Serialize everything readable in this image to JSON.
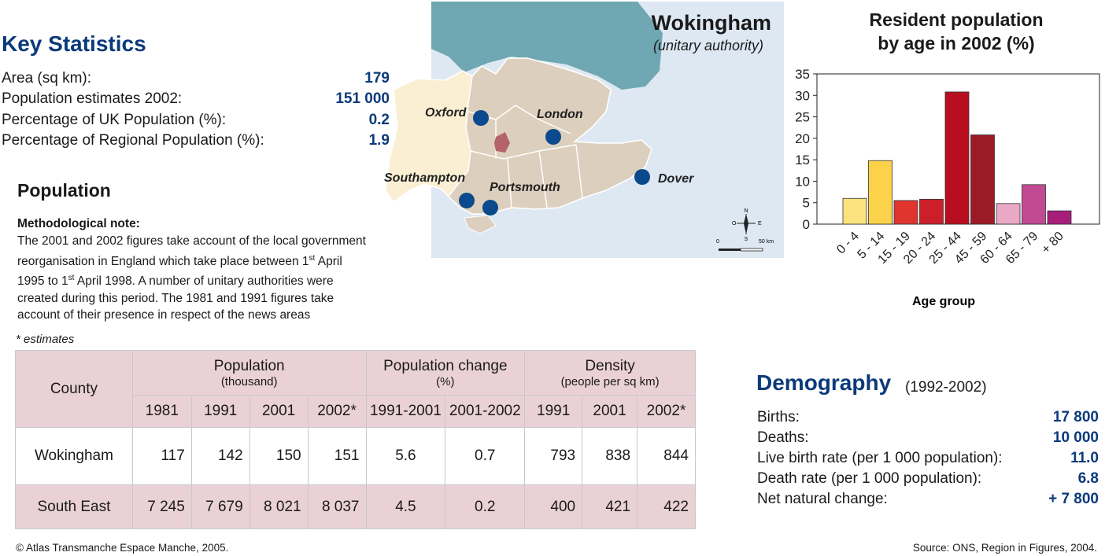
{
  "key_statistics": {
    "title": "Key Statistics",
    "rows": [
      {
        "label": "Area (sq km):",
        "value": "179"
      },
      {
        "label": "Population estimates 2002:",
        "value": "151 000"
      },
      {
        "label": "Percentage of UK Population (%):",
        "value": "0.2"
      },
      {
        "label": "Percentage of Regional Population (%):",
        "value": "1.9"
      }
    ]
  },
  "population": {
    "title": "Population",
    "note_title": "Methodological note:",
    "note_line1": "The 2001 and 2002 figures take account of the local government",
    "note_line2a": "reorganisation in England which take place between 1",
    "note_sup": "st",
    "note_line2b": " April",
    "note_line3a": "1995 to 1",
    "note_line3b": " April 1998. A number of unitary authorities were",
    "note_line4": "created during this period. The 1981 and 1991 figures take",
    "note_line5": "account of their presence in respect of the news areas",
    "estimates_note": "* estimates"
  },
  "table": {
    "county_header": "County",
    "groups": [
      {
        "title": "Population",
        "sub": "(thousand)"
      },
      {
        "title": "Population change",
        "sub": "(%)"
      },
      {
        "title": "Density",
        "sub": "(people per sq km)"
      }
    ],
    "columns": [
      "1981",
      "1991",
      "2001",
      "2002*",
      "1991-2001",
      "2001-2002",
      "1991",
      "2001",
      "2002*"
    ],
    "rows": [
      {
        "county": "Wokingham",
        "cells": [
          "117",
          "142",
          "150",
          "151",
          "5.6",
          "0.7",
          "793",
          "838",
          "844"
        ]
      },
      {
        "county": "South East",
        "cells": [
          "7 245",
          "7 679",
          "8 021",
          "8 037",
          "4.5",
          "0.2",
          "400",
          "421",
          "422"
        ]
      }
    ]
  },
  "map": {
    "title": "Wokingham",
    "subtitle": "(unitary authority)",
    "cities": [
      "Oxford",
      "London",
      "Southampton",
      "Portsmouth",
      "Dover"
    ],
    "compass": {
      "n": "N",
      "s": "S",
      "e": "E",
      "o": "O"
    },
    "scale_start": "0",
    "scale_end": "50 km",
    "colors": {
      "sea": "#dde8f3",
      "channel": "#6fa7b2",
      "region": "#dccfbd",
      "outside": "#fbefd3",
      "highlight": "#b5636a",
      "city": "#0b4a8c"
    }
  },
  "chart_title_line1": "Resident population",
  "chart_title_line2": "by age in 2002 (%)",
  "chart_data": {
    "type": "bar",
    "title": "Resident population by age in 2002 (%)",
    "xlabel": "Age group",
    "ylabel": "",
    "ylim": [
      0,
      35
    ],
    "yticks": [
      "0",
      "5",
      "10",
      "15",
      "20",
      "25",
      "30",
      "35"
    ],
    "categories": [
      "0 - 4",
      "5 - 14",
      "15 - 19",
      "20 - 24",
      "25 - 44",
      "45 - 59",
      "60 - 64",
      "65 - 79",
      "+ 80"
    ],
    "values": [
      6,
      14.8,
      5.5,
      5.8,
      30.8,
      20.8,
      4.8,
      9.2,
      3.1
    ],
    "colors": [
      "#fbe27f",
      "#fdd24b",
      "#e0342e",
      "#cc1f2a",
      "#b80e1f",
      "#9c1a25",
      "#e8a8c6",
      "#c24a94",
      "#a61e7a"
    ]
  },
  "demography": {
    "title": "Demography",
    "years": "(1992-2002)",
    "rows": [
      {
        "label": "Births:",
        "value": "17 800"
      },
      {
        "label": "Deaths:",
        "value": "10 000"
      },
      {
        "label": "Live birth rate (per 1 000 population):",
        "value": "11.0"
      },
      {
        "label": "Death rate (per 1 000 population):",
        "value": "6.8"
      },
      {
        "label": "Net natural change:",
        "value": "+ 7 800"
      }
    ]
  },
  "footer": {
    "copyright": "© Atlas Transmanche Espace Manche, 2005.",
    "source": "Source: ONS, Region in Figures, 2004."
  }
}
